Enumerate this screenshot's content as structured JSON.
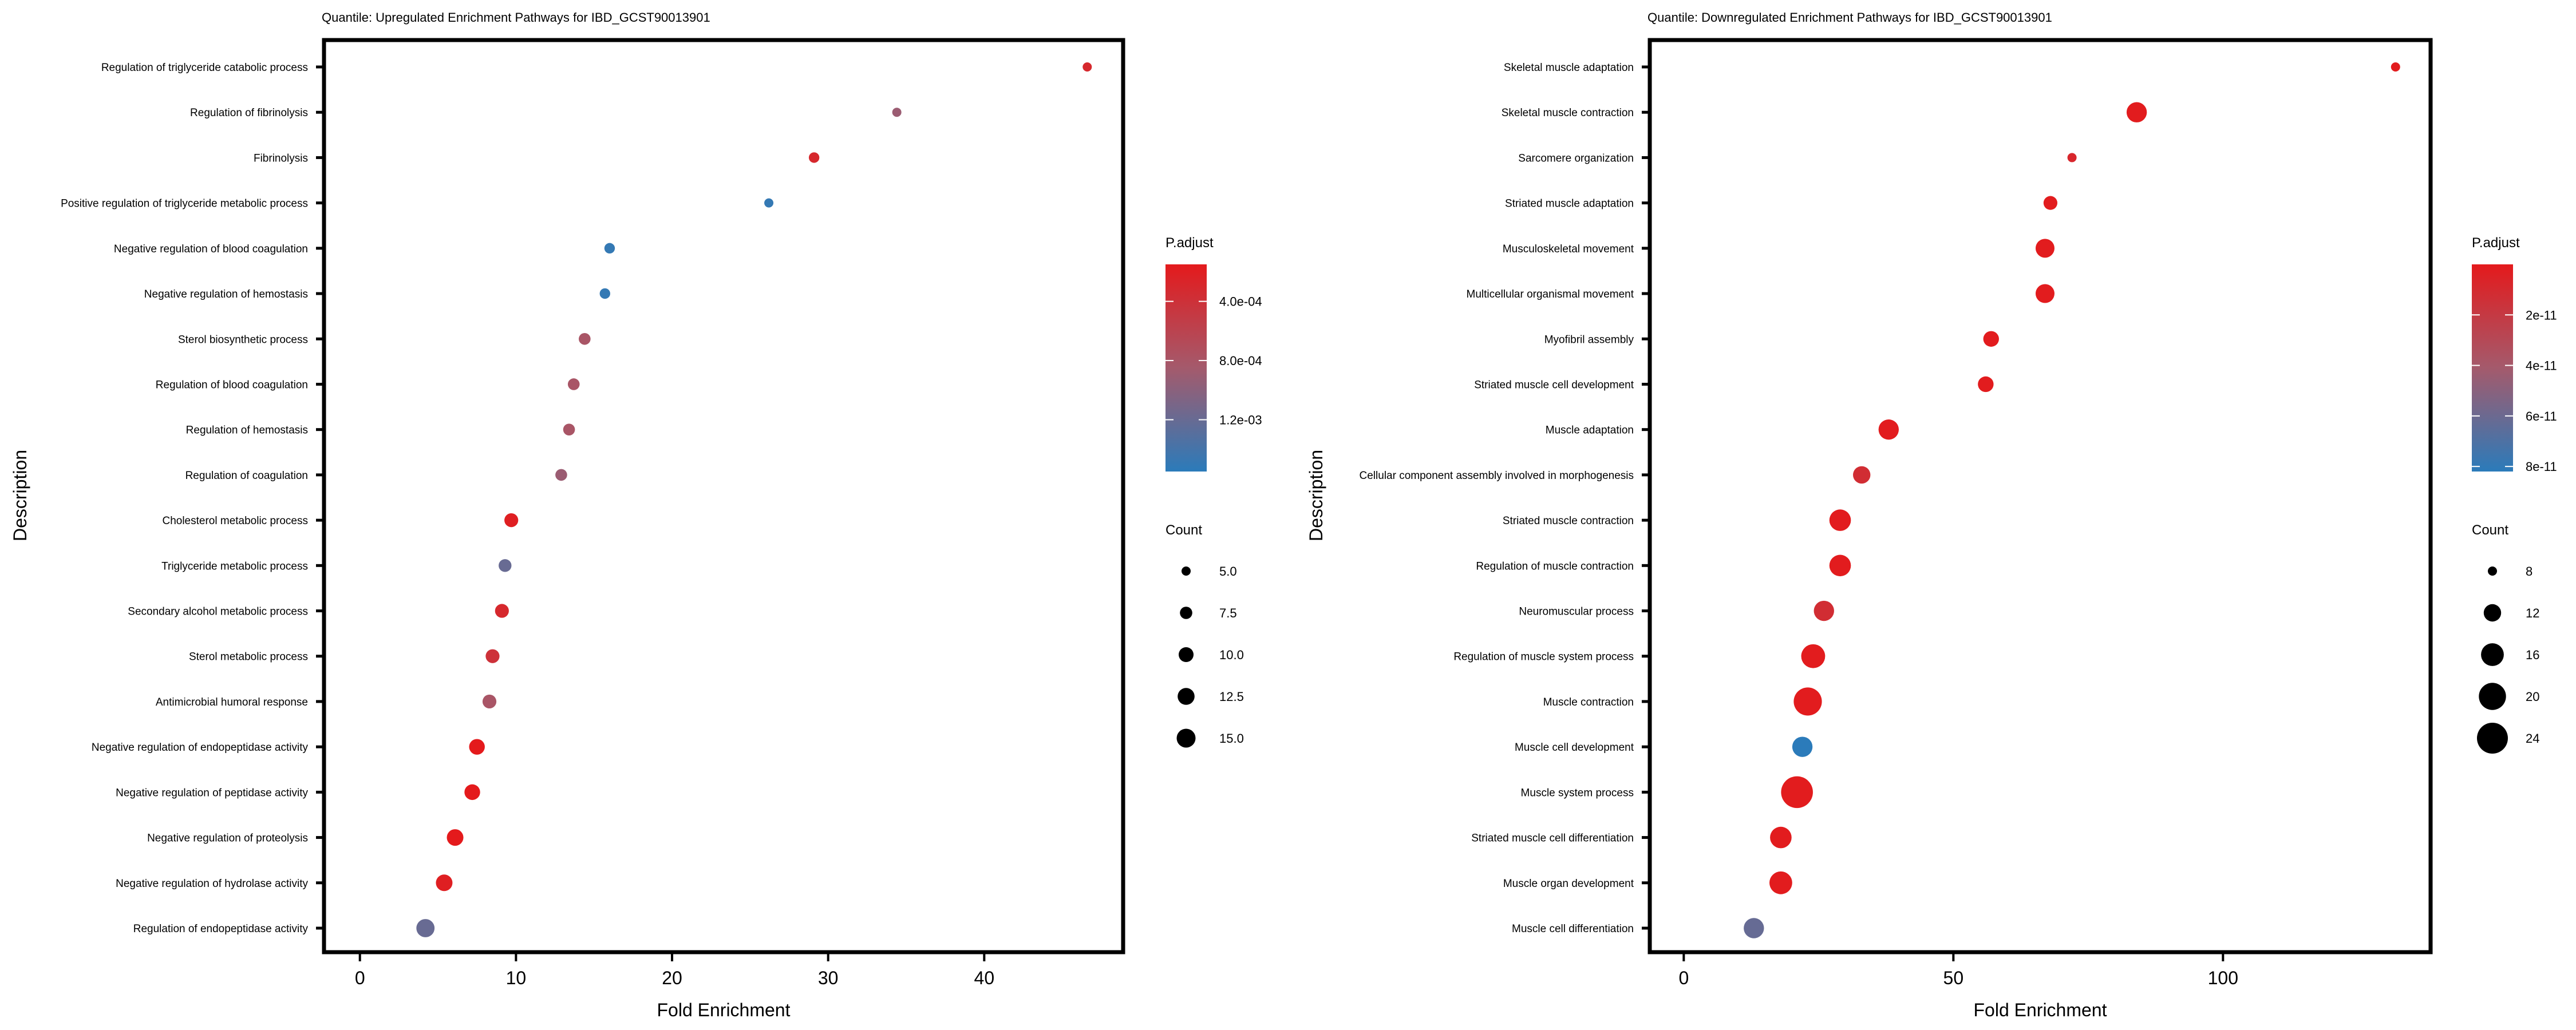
{
  "chart_data": [
    {
      "type": "scatter",
      "title": "Quantile: Upregulated Enrichment Pathways for IBD_GCST90013901",
      "xlabel": "Fold Enrichment",
      "ylabel": "Description",
      "xlim": [
        -2.3,
        48.9
      ],
      "xticks": [
        0,
        10,
        20,
        30,
        40
      ],
      "grid": false,
      "legend_placement": "right",
      "color_legend": {
        "title": "P.adjust",
        "ticks": [
          "4.0e-04",
          "8.0e-04",
          "1.2e-03"
        ],
        "tick_values": [
          0.0004,
          0.0008,
          0.0012
        ],
        "range": [
          0.00015,
          0.00155
        ],
        "low_color": "#e41a1c",
        "high_color": "#2b7bba"
      },
      "size_legend": {
        "title": "Count",
        "labels": [
          "5.0",
          "7.5",
          "10.0",
          "12.5",
          "15.0"
        ],
        "values": [
          5,
          7.5,
          10,
          12.5,
          15
        ]
      },
      "categories": [
        "Regulation of triglyceride catabolic process",
        "Regulation of fibrinolysis",
        "Fibrinolysis",
        "Positive regulation of triglyceride metabolic process",
        "Negative regulation of blood coagulation",
        "Negative regulation of hemostasis",
        "Sterol biosynthetic process",
        "Regulation of blood coagulation",
        "Regulation of hemostasis",
        "Regulation of coagulation",
        "Cholesterol metabolic process",
        "Triglyceride metabolic process",
        "Secondary alcohol metabolic process",
        "Sterol metabolic process",
        "Antimicrobial humoral response",
        "Negative regulation of endopeptidase activity",
        "Negative regulation of peptidase activity",
        "Negative regulation of proteolysis",
        "Negative regulation of hydrolase activity",
        "Regulation of endopeptidase activity"
      ],
      "fold_enrichment": [
        46.6,
        34.4,
        29.1,
        26.2,
        16.0,
        15.7,
        14.4,
        13.7,
        13.4,
        12.9,
        9.7,
        9.3,
        9.1,
        8.5,
        8.3,
        7.5,
        7.2,
        6.1,
        5.4,
        4.2
      ],
      "count": [
        4,
        4,
        6,
        4,
        6,
        6,
        7,
        7,
        7,
        7,
        9,
        8,
        9,
        9,
        9,
        11,
        11,
        12,
        12,
        14
      ],
      "p_adjust": [
        0.0003,
        0.0009,
        0.0003,
        0.0015,
        0.0015,
        0.0015,
        0.0008,
        0.0008,
        0.0008,
        0.0009,
        0.0002,
        0.0012,
        0.0003,
        0.0004,
        0.0008,
        0.00015,
        0.00015,
        0.00015,
        0.0002,
        0.0012
      ]
    },
    {
      "type": "scatter",
      "title": "Quantile: Downregulated Enrichment Pathways for IBD_GCST90013901",
      "xlabel": "Fold Enrichment",
      "ylabel": "Description",
      "xlim": [
        -6.3,
        138.5
      ],
      "xticks": [
        0,
        50,
        100
      ],
      "grid": false,
      "legend_placement": "right",
      "color_legend": {
        "title": "P.adjust",
        "ticks": [
          "2e-11",
          "4e-11",
          "6e-11",
          "8e-11"
        ],
        "tick_values": [
          2e-11,
          4e-11,
          6e-11,
          8e-11
        ],
        "range": [
          0.0,
          8.2e-11
        ],
        "low_color": "#e41a1c",
        "high_color": "#2b7bba"
      },
      "size_legend": {
        "title": "Count",
        "labels": [
          "8",
          "12",
          "16",
          "20",
          "24"
        ],
        "values": [
          8,
          12,
          16,
          20,
          24
        ]
      },
      "categories": [
        "Skeletal muscle adaptation",
        "Skeletal muscle contraction",
        "Sarcomere organization",
        "Striated muscle adaptation",
        "Musculoskeletal movement",
        "Multicellular organismal movement",
        "Myofibril assembly",
        "Striated muscle cell development",
        "Muscle adaptation",
        "Cellular component assembly involved in morphogenesis",
        "Striated muscle contraction",
        "Regulation of muscle contraction",
        "Neuromuscular process",
        "Regulation of muscle system process",
        "Muscle contraction",
        "Muscle cell development",
        "Muscle system process",
        "Striated muscle cell differentiation",
        "Muscle organ development",
        "Muscle cell differentiation"
      ],
      "fold_enrichment": [
        132,
        84,
        72,
        68,
        67,
        67,
        57,
        56,
        38,
        33,
        29,
        29,
        26,
        24,
        23,
        22,
        21,
        18,
        18,
        13
      ],
      "count": [
        7,
        14,
        6,
        10,
        13,
        13,
        11,
        11,
        14,
        12,
        15,
        15,
        14,
        17,
        21,
        14,
        25,
        15,
        16,
        14
      ],
      "p_adjust": [
        1e-12,
        1e-12,
        8e-12,
        1e-12,
        1e-12,
        1e-12,
        1e-12,
        1e-12,
        1e-12,
        1.2e-11,
        1e-12,
        1e-12,
        1.2e-11,
        1e-12,
        1e-12,
        8.2e-11,
        1e-12,
        1e-12,
        1e-12,
        6.2e-11
      ]
    }
  ]
}
